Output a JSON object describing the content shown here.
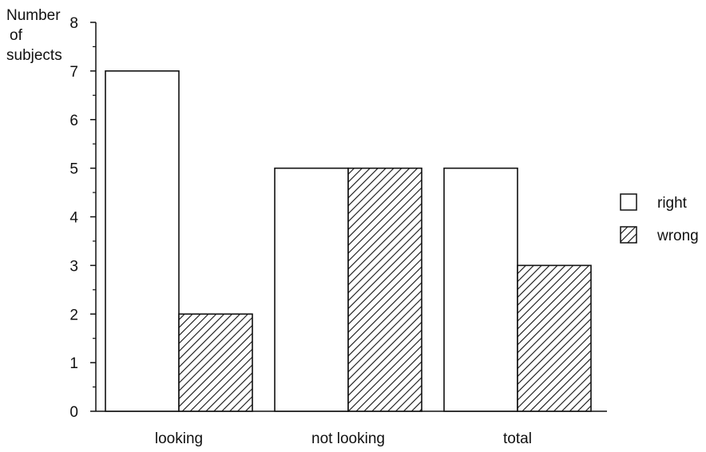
{
  "chart_data": {
    "type": "bar",
    "categories": [
      "looking",
      "not looking",
      "total"
    ],
    "series": [
      {
        "name": "right",
        "values": [
          7,
          5,
          5
        ],
        "fill": "solid",
        "color": "#ffffff"
      },
      {
        "name": "wrong",
        "values": [
          2,
          5,
          3
        ],
        "fill": "hatched",
        "color": "#ffffff"
      }
    ],
    "ylabel_lines": [
      "Number",
      "of",
      "subjects"
    ],
    "xlabel": "",
    "title": "",
    "ylim": [
      0,
      8
    ],
    "yticks": [
      0,
      1,
      2,
      3,
      4,
      5,
      6,
      7,
      8
    ],
    "minor_ticks_per_unit": 2,
    "grid": false,
    "legend_position": "right",
    "colors": {
      "stroke": "#111111",
      "background": "#ffffff"
    }
  }
}
